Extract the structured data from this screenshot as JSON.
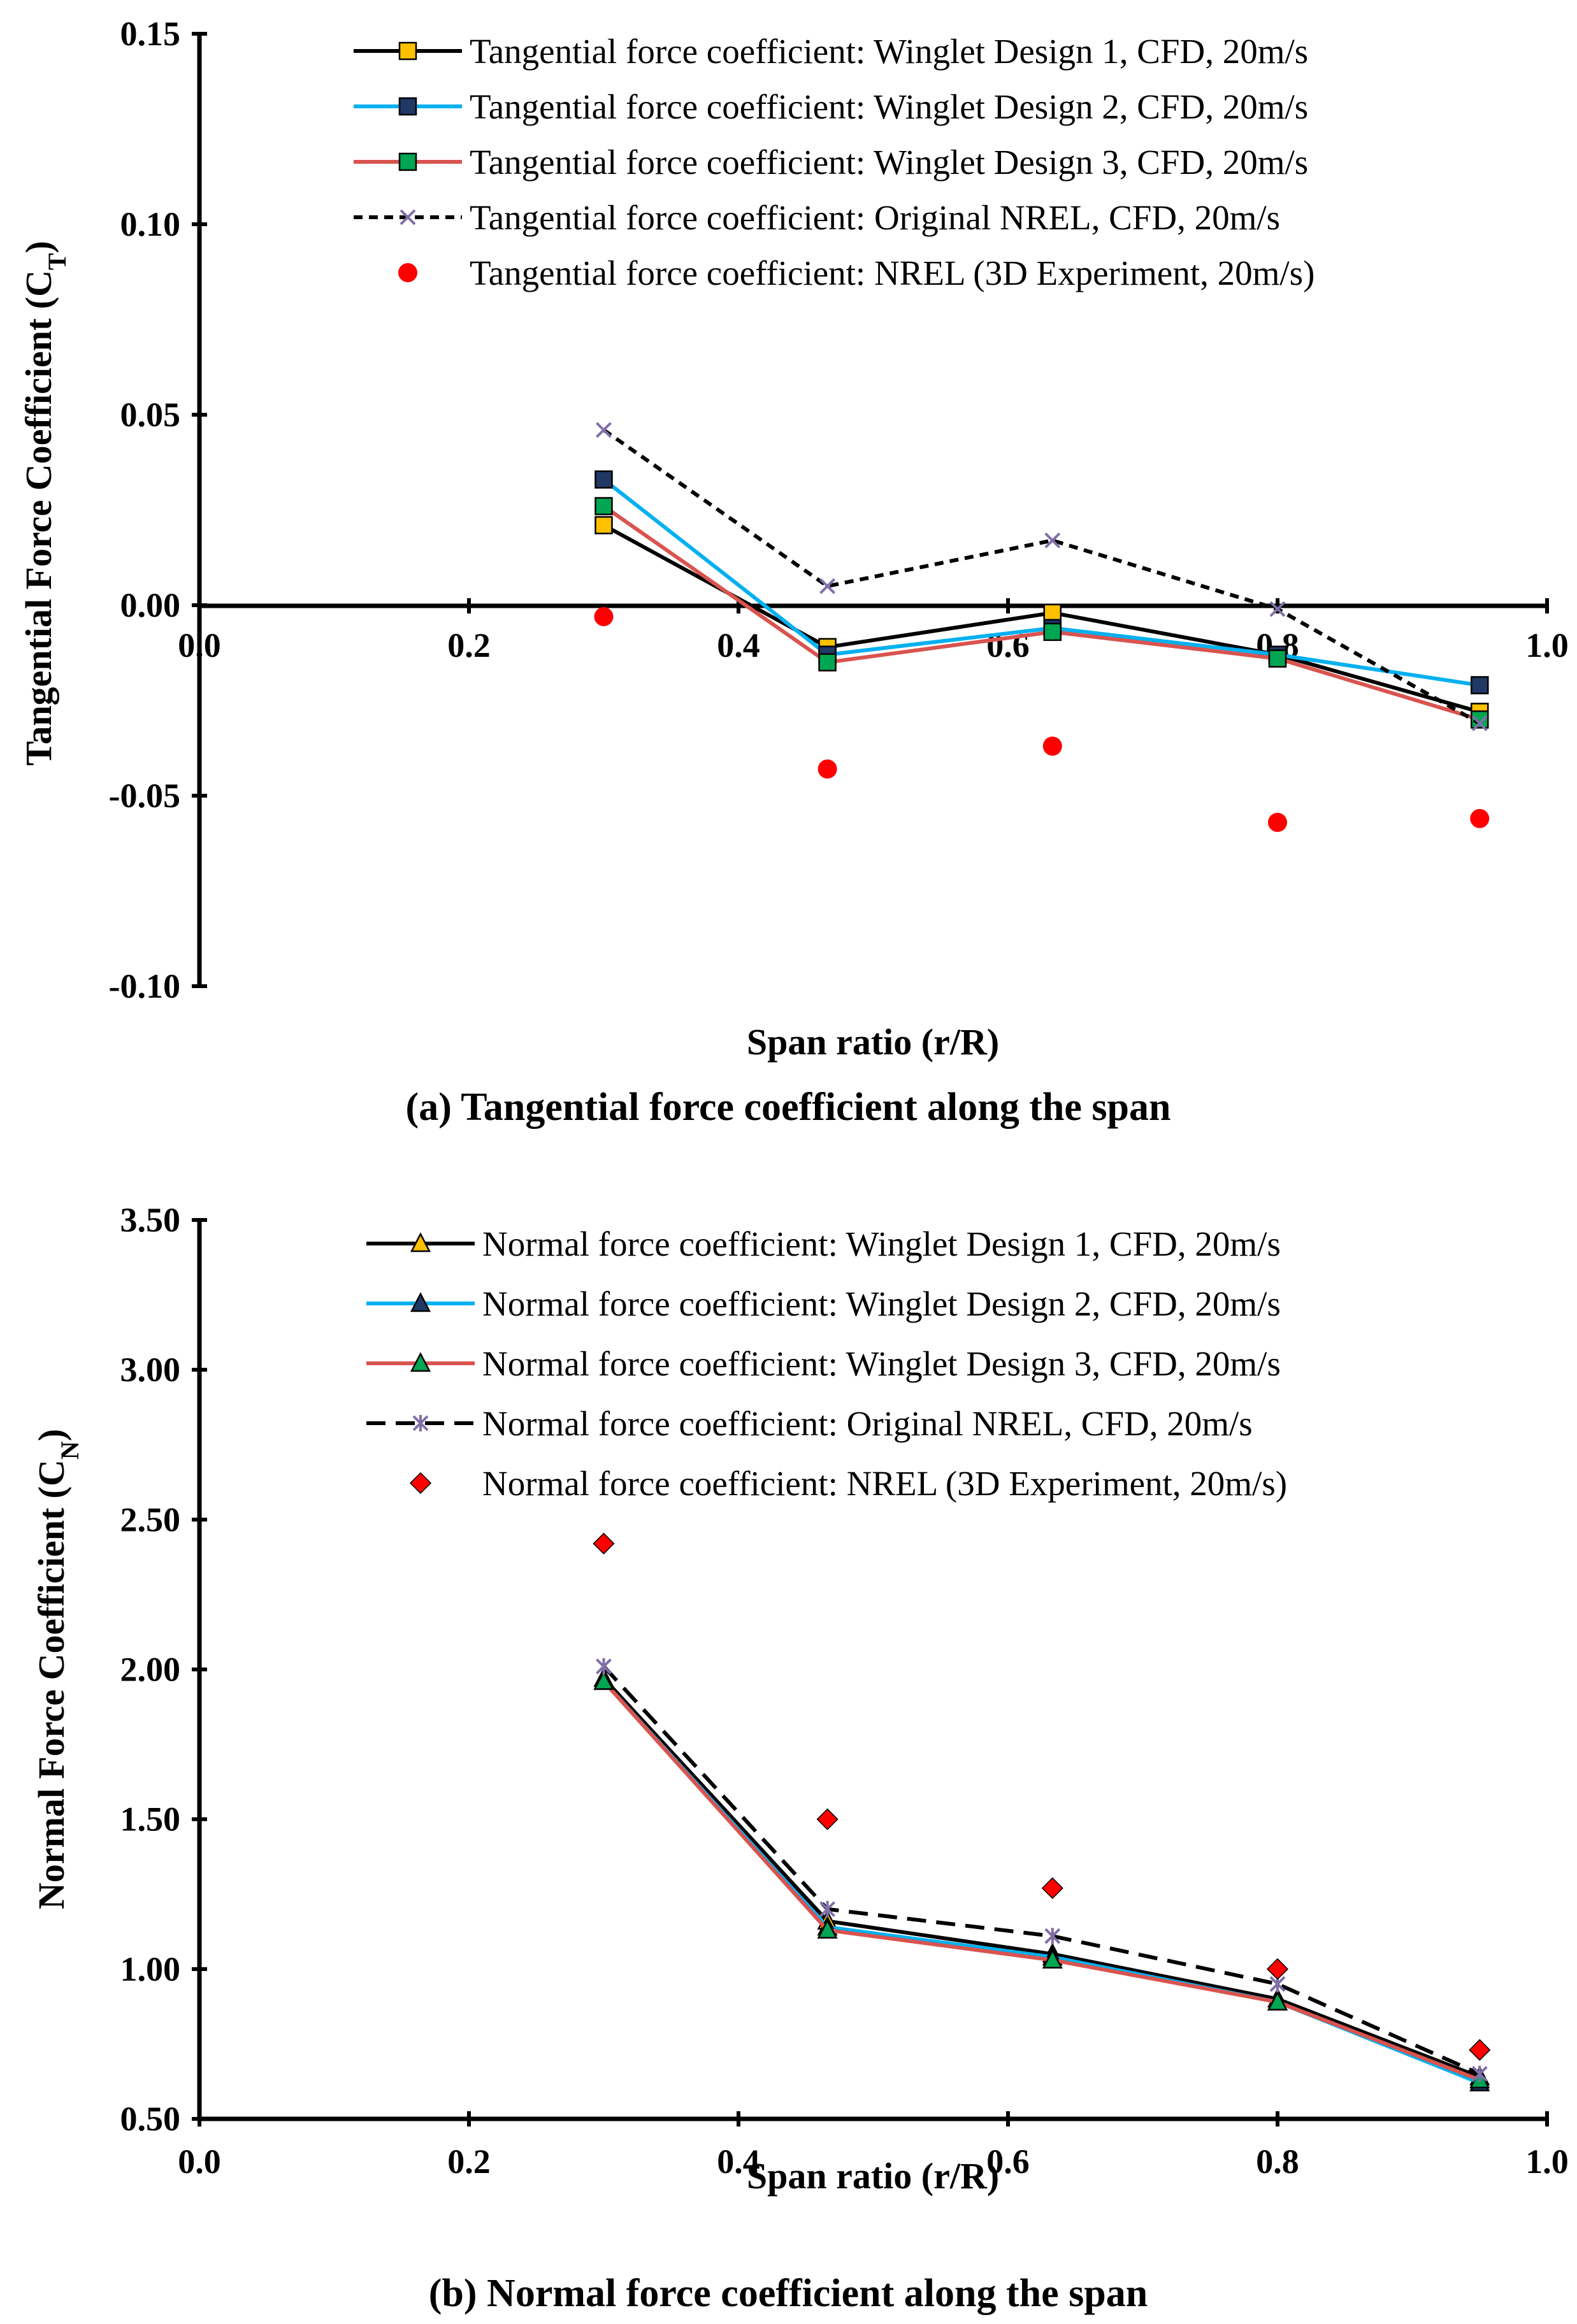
{
  "chart_data": [
    {
      "type": "line",
      "caption": "(a) Tangential force coefficient along the span",
      "xlabel": "Span ratio (r/R)",
      "ylabel_main": "Tangential Force Coefficient (C",
      "ylabel_sub": "T",
      "ylabel_close": ")",
      "xlim": [
        0.0,
        1.0
      ],
      "ylim": [
        -0.1,
        0.15
      ],
      "xticks": [
        0.0,
        0.2,
        0.4,
        0.6,
        0.8,
        1.0
      ],
      "xtick_labels": [
        "0.0",
        "0.2",
        "0.4",
        "0.6",
        "0.8",
        "1.0"
      ],
      "yticks": [
        0.15,
        0.1,
        0.05,
        0.0,
        -0.05,
        -0.1
      ],
      "ytick_labels": [
        "0.15",
        "0.10",
        "0.05",
        "0.00",
        "-0.05",
        "-0.10"
      ],
      "grid": false,
      "legend_position": "top-right",
      "series": [
        {
          "name": "Tangential force coefficient: Winglet Design 1, CFD, 20m/s",
          "line_color": "#000000",
          "dash": "",
          "marker": "square",
          "marker_color": "#FFC000",
          "x": [
            0.3,
            0.466,
            0.633,
            0.8,
            0.95
          ],
          "values": [
            0.021,
            -0.011,
            -0.002,
            -0.013,
            -0.028
          ]
        },
        {
          "name": "Tangential force coefficient: Winglet Design 2, CFD, 20m/s",
          "line_color": "#00B0F0",
          "dash": "",
          "marker": "square",
          "marker_color": "#1F3864",
          "x": [
            0.3,
            0.466,
            0.633,
            0.8,
            0.95
          ],
          "values": [
            0.033,
            -0.013,
            -0.006,
            -0.013,
            -0.021
          ]
        },
        {
          "name": "Tangential force coefficient: Winglet Design 3, CFD, 20m/s",
          "line_color": "#D9534F",
          "dash": "",
          "marker": "square",
          "marker_color": "#00A651",
          "x": [
            0.3,
            0.466,
            0.633,
            0.8,
            0.95
          ],
          "values": [
            0.026,
            -0.015,
            -0.007,
            -0.014,
            -0.03
          ]
        },
        {
          "name": "Tangential force coefficient: Original NREL, CFD, 20m/s",
          "line_color": "#000000",
          "dash": "14,10",
          "marker": "cross",
          "marker_color": "#7F6FA8",
          "x": [
            0.3,
            0.466,
            0.633,
            0.8,
            0.95
          ],
          "values": [
            0.046,
            0.005,
            0.017,
            -0.001,
            -0.031
          ]
        },
        {
          "name": "Tangential force coefficient: NREL (3D Experiment, 20m/s)",
          "line_color": "none",
          "dash": "",
          "marker": "circle",
          "marker_color": "#FF0000",
          "x": [
            0.3,
            0.466,
            0.633,
            0.8,
            0.95
          ],
          "values": [
            -0.003,
            -0.043,
            -0.037,
            -0.057,
            -0.056
          ]
        }
      ]
    },
    {
      "type": "line",
      "caption": "(b) Normal force coefficient along the span",
      "xlabel": "Span ratio (r/R)",
      "ylabel_main": "Normal Force Coefficient (C",
      "ylabel_sub": "N",
      "ylabel_close": ")",
      "xlim": [
        0.0,
        1.0
      ],
      "ylim": [
        0.5,
        3.5
      ],
      "xticks": [
        0.0,
        0.2,
        0.4,
        0.6,
        0.8,
        1.0
      ],
      "xtick_labels": [
        "0.0",
        "0.2",
        "0.4",
        "0.6",
        "0.8",
        "1.0"
      ],
      "yticks": [
        3.5,
        3.0,
        2.5,
        2.0,
        1.5,
        1.0,
        0.5
      ],
      "ytick_labels": [
        "3.50",
        "3.00",
        "2.50",
        "2.00",
        "1.50",
        "1.00",
        "0.50"
      ],
      "grid": false,
      "legend_position": "top-right",
      "series": [
        {
          "name": "Normal force coefficient: Winglet Design 1, CFD, 20m/s",
          "line_color": "#000000",
          "dash": "",
          "marker": "triangle",
          "marker_color": "#FFC000",
          "x": [
            0.3,
            0.466,
            0.633,
            0.8,
            0.95
          ],
          "values": [
            1.97,
            1.16,
            1.05,
            0.9,
            0.64
          ]
        },
        {
          "name": "Normal force coefficient: Winglet Design 2, CFD, 20m/s",
          "line_color": "#00B0F0",
          "dash": "",
          "marker": "triangle",
          "marker_color": "#1F3864",
          "x": [
            0.3,
            0.466,
            0.633,
            0.8,
            0.95
          ],
          "values": [
            1.96,
            1.14,
            1.04,
            0.89,
            0.62
          ]
        },
        {
          "name": "Normal force coefficient: Winglet Design 3, CFD, 20m/s",
          "line_color": "#D9534F",
          "dash": "",
          "marker": "triangle",
          "marker_color": "#00A651",
          "x": [
            0.3,
            0.466,
            0.633,
            0.8,
            0.95
          ],
          "values": [
            1.96,
            1.13,
            1.03,
            0.89,
            0.63
          ]
        },
        {
          "name": "Normal force coefficient: Original NREL, CFD, 20m/s",
          "line_color": "#000000",
          "dash": "30,16",
          "marker": "asterisk",
          "marker_color": "#7F6FA8",
          "x": [
            0.3,
            0.466,
            0.633,
            0.8,
            0.95
          ],
          "values": [
            2.01,
            1.2,
            1.11,
            0.95,
            0.65
          ]
        },
        {
          "name": "Normal force coefficient: NREL (3D Experiment, 20m/s)",
          "line_color": "none",
          "dash": "",
          "marker": "diamond",
          "marker_color": "#FF0000",
          "x": [
            0.3,
            0.466,
            0.633,
            0.8,
            0.95
          ],
          "values": [
            2.42,
            1.5,
            1.27,
            1.0,
            0.73
          ]
        }
      ]
    }
  ]
}
